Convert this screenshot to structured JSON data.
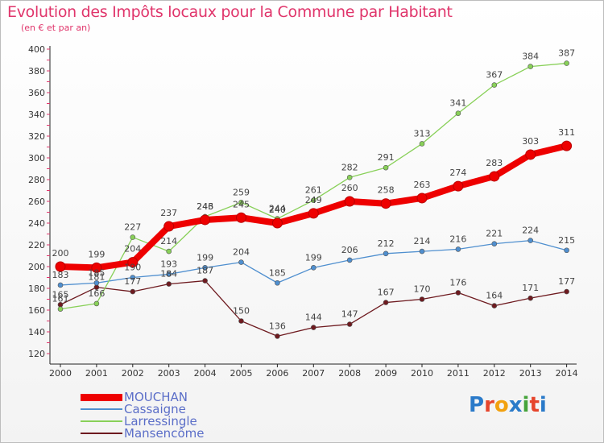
{
  "title": "Evolution des Impôts locaux pour la Commune par Habitant",
  "subtitle": "(en € et par an)",
  "logo": {
    "text": "Proxiti",
    "colors": [
      "#2a7ac9",
      "#e6452c",
      "#f2a10f",
      "#2a7ac9",
      "#45a33a",
      "#e6452c",
      "#2a7ac9"
    ]
  },
  "chart_data": {
    "type": "line",
    "x": [
      "2000",
      "2001",
      "2002",
      "2003",
      "2004",
      "2005",
      "2006",
      "2007",
      "2008",
      "2009",
      "2010",
      "2011",
      "2012",
      "2013",
      "2014"
    ],
    "ylim": [
      120,
      400
    ],
    "yticks": [
      "120",
      "140",
      "160",
      "180",
      "200",
      "220",
      "240",
      "260",
      "280",
      "300",
      "320",
      "340",
      "360",
      "380",
      "400"
    ],
    "grid": false,
    "legend_position": "bottom-left",
    "series": [
      {
        "name": "MOUCHAN",
        "color": "#ee0000",
        "values": [
          200,
          199,
          204,
          237,
          243,
          245,
          240,
          249,
          260,
          258,
          263,
          274,
          283,
          303,
          311
        ]
      },
      {
        "name": "Cassaigne",
        "color": "#4f8fcf",
        "values": [
          183,
          185,
          190,
          193,
          199,
          204,
          185,
          199,
          206,
          212,
          214,
          216,
          221,
          224,
          215
        ]
      },
      {
        "name": "Larressingle",
        "color": "#88d058",
        "values": [
          161,
          166,
          227,
          214,
          246,
          259,
          244,
          261,
          282,
          291,
          313,
          341,
          367,
          384,
          387
        ]
      },
      {
        "name": "Mansencôme",
        "color": "#6e1a1f",
        "values": [
          165,
          181,
          177,
          184,
          187,
          150,
          136,
          144,
          147,
          167,
          170,
          176,
          164,
          171,
          177
        ]
      }
    ]
  }
}
